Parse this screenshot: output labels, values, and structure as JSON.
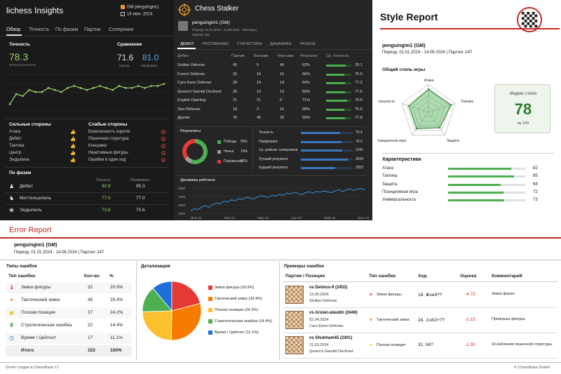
{
  "lichess": {
    "title": "lichess Insights",
    "user": "GM penguingim1",
    "date": "14 июн. 2024",
    "tabs": [
      "Обзор",
      "Точность",
      "По фазам",
      "Партии",
      "Соперники"
    ],
    "accuracy_label": "Точность",
    "accuracy_value": "78.3",
    "accuracy_sub": "Точность/точность",
    "compare_label": "Сравнение",
    "compare_games_value": "71.6",
    "compare_games_label": "партии",
    "compare_perf_value": "81.0",
    "compare_perf_label": "перфоманс",
    "strong_title": "Сильные стороны",
    "strong_items": [
      "Атака",
      "Дебют",
      "Тактика",
      "Центр",
      "Эндшпиль"
    ],
    "weak_title": "Слабые стороны",
    "weak_items": [
      "Безопасность короля",
      "Пешечная структура",
      "Концовки",
      "Неактивные фигуры",
      "Ошибки в один ход"
    ],
    "phases_title": "По фазам",
    "phases_col1": "Точность",
    "phases_col2": "Перфоманс",
    "phases": [
      {
        "name": "Дебют",
        "accuracy": "82.9",
        "perf": "85.3"
      },
      {
        "name": "Миттельшпиль",
        "accuracy": "77.0",
        "perf": "77.0"
      },
      {
        "name": "Эндшпиль",
        "accuracy": "73.8",
        "perf": "70.6"
      }
    ],
    "accuracy_series": [
      72,
      77,
      76,
      79,
      78,
      78,
      80,
      79,
      78,
      80,
      81,
      80,
      79,
      80,
      81,
      80,
      79,
      81,
      80,
      80,
      81,
      80,
      81,
      81,
      82
    ],
    "accent": "#9bd56e",
    "blue": "#5aa0e6"
  },
  "stalker": {
    "title": "Chess Stalker",
    "user": "penguingim1 (GM)",
    "period": "Период: 01.01.2024 - 14.06.2024",
    "partners_label": "Партнеры",
    "games": "Партии: 247",
    "tabs": [
      "ДЕБЮТ",
      "ПРОТИВНИКИ",
      "СТАТИСТИКА",
      "ДИНАМИКА",
      "РАЗНОЕ"
    ],
    "columns": [
      "Дебют",
      "Партии",
      "Белыми",
      "Черными",
      "Результат",
      "Ср. точность"
    ],
    "openings": [
      {
        "name": "Sicilian Defense",
        "games": "45",
        "white": "5",
        "black": "40",
        "result": "62%",
        "acc": "78.1",
        "frac": 0.78
      },
      {
        "name": "French Defense",
        "games": "32",
        "white": "16",
        "black": "16",
        "result": "56%",
        "acc": "76.5",
        "frac": 0.72
      },
      {
        "name": "Caro-Kann Defense",
        "games": "28",
        "white": "14",
        "black": "14",
        "result": "64%",
        "acc": "77.2",
        "frac": 0.75
      },
      {
        "name": "Queen's Gambit Declined",
        "games": "25",
        "white": "12",
        "black": "13",
        "result": "60%",
        "acc": "77.6",
        "frac": 0.76
      },
      {
        "name": "English Opening",
        "games": "21",
        "white": "21",
        "black": "0",
        "result": "71%",
        "acc": "79.6",
        "frac": 0.82
      },
      {
        "name": "Slav Defense",
        "games": "18",
        "white": "2",
        "black": "16",
        "result": "58%",
        "acc": "76.6",
        "frac": 0.73
      },
      {
        "name": "Другие",
        "games": "78",
        "white": "45",
        "black": "33",
        "result": "59%",
        "acc": "77.8",
        "frac": 0.76
      }
    ],
    "results_title": "Результаты",
    "results": [
      {
        "label": "Победы",
        "pct": "55%",
        "value": 55,
        "color": "#4caf50"
      },
      {
        "label": "Ничьи",
        "pct": "10%",
        "value": 10,
        "color": "#9e9e9e"
      },
      {
        "label": "Поражения",
        "pct": "35%",
        "value": 35,
        "color": "#e53935"
      }
    ],
    "stats": [
      {
        "label": "Точность",
        "value": "76.4",
        "frac": 0.76
      },
      {
        "label": "Перфоманс",
        "value": "78.2",
        "frac": 0.78
      },
      {
        "label": "Ср. рейтинг соперников",
        "value": "2341",
        "frac": 0.8
      },
      {
        "label": "Лучший результат",
        "value": "2634",
        "frac": 0.9
      },
      {
        "label": "Худший результат",
        "value": "2003",
        "frac": 0.66
      }
    ],
    "dynamics_title": "Динамика рейтинга",
    "y_ticks": [
      "2600",
      "2400",
      "2200",
      "2000"
    ],
    "x_ticks": [
      "Янв '24",
      "Фев '24",
      "Мар '24",
      "Апр '24",
      "Май '24",
      "Июн '24"
    ],
    "rating_series": [
      2060,
      2110,
      2090,
      2150,
      2180,
      2140,
      2210,
      2250,
      2230,
      2290,
      2270,
      2320,
      2300,
      2350,
      2330,
      2380,
      2360,
      2340,
      2390,
      2420,
      2400,
      2380,
      2430,
      2410,
      2450,
      2430,
      2480,
      2460,
      2500,
      2470,
      2440,
      2490,
      2510,
      2480,
      2520,
      2500,
      2530,
      2510,
      2490,
      2530,
      2560,
      2520,
      2550,
      2580,
      2540,
      2570,
      2590,
      2550
    ],
    "rating_ylim": [
      1900,
      2700
    ]
  },
  "style": {
    "title": "Style Report",
    "user": "penguingim1 (GM)",
    "period_games": "Период: 01.01.2024 - 14.06.2024  |  Партии: 247",
    "general_title": "Общий стиль игры",
    "radar_axes": [
      "Атака",
      "Тактика",
      "Защита",
      "Позиционная игра",
      "Универсальность"
    ],
    "radar_values": [
      82,
      85,
      68,
      72,
      73
    ],
    "index_label": "Индекс стиля",
    "index_value": "78",
    "index_sub": "из 100",
    "char_title": "Характеристики",
    "characteristics": [
      {
        "name": "Атака",
        "value": "82",
        "frac": 0.82
      },
      {
        "name": "Тактика",
        "value": "85",
        "frac": 0.85
      },
      {
        "name": "Защита",
        "value": "68",
        "frac": 0.68
      },
      {
        "name": "Позиционная игра",
        "value": "72",
        "frac": 0.72
      },
      {
        "name": "Универсальность",
        "value": "73",
        "frac": 0.73
      }
    ]
  },
  "errors": {
    "title": "Error Report",
    "user": "penguingim1 (GM)",
    "period_games": "Период: 01.01.2024 - 14.06.2024  |  Партии: 247",
    "types_title": "Типы ошибок",
    "types_cols": [
      "Тип ошибки",
      "Кол-во",
      "%"
    ],
    "types": [
      {
        "name": "Зевок фигуры",
        "count": "32",
        "pct": "20.9%",
        "color": "#e53935"
      },
      {
        "name": "Тактический зевок",
        "count": "45",
        "pct": "29.4%",
        "color": "#f57c00"
      },
      {
        "name": "Плохая позиция",
        "count": "37",
        "pct": "24.2%",
        "color": "#fbc02d"
      },
      {
        "name": "Стратегическая ошибка",
        "count": "22",
        "pct": "14.4%",
        "color": "#4caf50"
      },
      {
        "name": "Время / Цейтнот",
        "count": "17",
        "pct": "11.1%",
        "color": "#1e6fd9"
      }
    ],
    "total_label": "Итого",
    "total_count": "153",
    "total_pct": "100%",
    "detail_title": "Детализация",
    "pie_legend": [
      "Зевок фигуры (20.9%)",
      "Тактический зевок (29.4%)",
      "Плохая позиция (24.2%)",
      "Стратегическая ошибка (14.4%)",
      "Время / Цейтнот (11.1%)"
    ],
    "pie_values": [
      20.9,
      29.4,
      24.2,
      14.4,
      11.1
    ],
    "examples_title": "Примеры ошибок",
    "examples_cols": [
      "Партия / Позиция",
      "Тип ошибки",
      "Ход",
      "Оценка",
      "Комментарий"
    ],
    "examples": [
      {
        "opponent": "vs Deimos-9 (2453)",
        "date": "13.05.2024",
        "opening": "Sicilian Defense",
        "type": "Зевок фигуры",
        "move": "18. ♛xe4??",
        "eval": "-4.72",
        "comment": "Зевок ферзя.",
        "color": "#e53935"
      },
      {
        "opponent": "vs Arslan-alaudin (2446)",
        "date": "02.04.2024",
        "opening": "Caro-Kann Defense",
        "type": "Тактический зевок",
        "move": "24. ♙xh2+??",
        "eval": "-3.15",
        "comment": "Проигрыш фигуры.",
        "color": "#f57c00"
      },
      {
        "opponent": "vs Shubham45 (2401)",
        "date": "21.03.2024",
        "opening": "Queen's Gambit Declined",
        "type": "Плохая позиция",
        "move": "31. h6?",
        "eval": "-1.92",
        "comment": "Ослабление пешечной структуры.",
        "color": "#fbc02d"
      }
    ],
    "footer_left": "Отчёт создан в ChessBase 17",
    "footer_right": "© ChessBase GmbH"
  }
}
